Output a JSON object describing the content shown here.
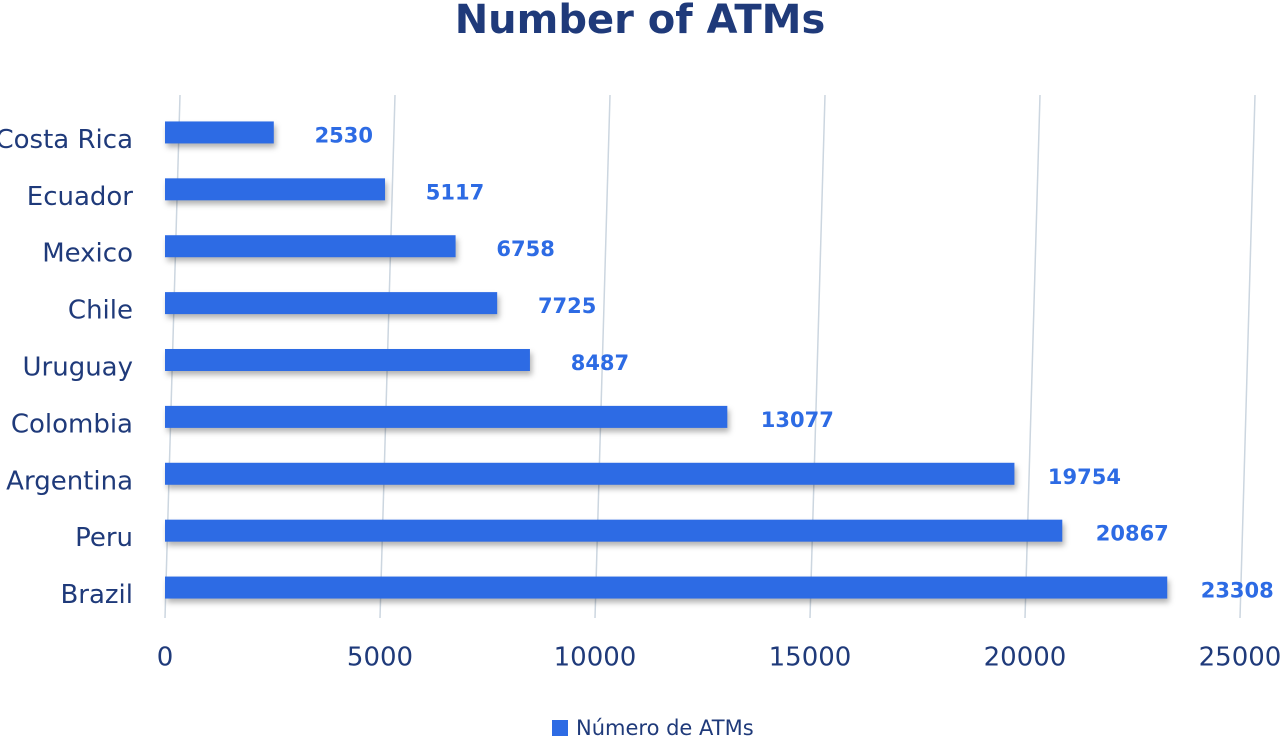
{
  "chart_data": {
    "type": "bar",
    "orientation": "horizontal",
    "title": "Number of ATMs",
    "categories": [
      "Costa Rica",
      "Ecuador",
      "Mexico",
      "Chile",
      "Uruguay",
      "Colombia",
      "Argentina",
      "Peru",
      "Brazil"
    ],
    "series": [
      {
        "name": "Número de ATMs",
        "color": "#2d6be4",
        "values": [
          2530,
          5117,
          6758,
          7725,
          8487,
          13077,
          19754,
          20867,
          23308
        ]
      }
    ],
    "xlim": [
      0,
      25000
    ],
    "xticks": [
      0,
      5000,
      10000,
      15000,
      20000,
      25000
    ],
    "grid": true,
    "legend": "bottom"
  }
}
